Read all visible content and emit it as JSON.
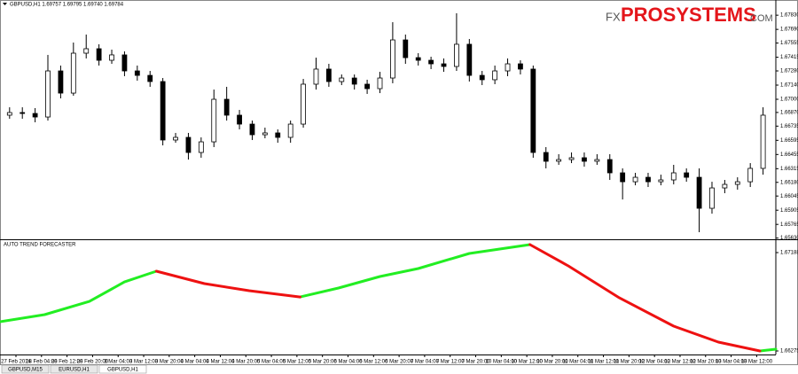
{
  "header": {
    "title": "GBPUSD,H1  1.69757 1.69795 1.69740 1.69784"
  },
  "logo": {
    "prefix": "FX",
    "brand": "PROSYSTEMS",
    "suffix": ".COM"
  },
  "tabs": [
    "GBPUSD,M15",
    "EURUSD,H1",
    "GBPUSD,H1"
  ],
  "chart_data": [
    {
      "type": "candlestick",
      "x": [
        2,
        6,
        10,
        14,
        18,
        22,
        26,
        30,
        34,
        38,
        42,
        46,
        50,
        54,
        58,
        62,
        66,
        70,
        74,
        78,
        82,
        86,
        90,
        94,
        98,
        102,
        106,
        110,
        114,
        118,
        122,
        126,
        130,
        134,
        138,
        142,
        146,
        150,
        154,
        158,
        162,
        166,
        170,
        174,
        178,
        182,
        186,
        190,
        194,
        198,
        202,
        206,
        210,
        214,
        218,
        222,
        226,
        230,
        234,
        238
      ],
      "open": [
        1.66843,
        1.66869,
        1.6686,
        1.66825,
        1.6728,
        1.67061,
        1.67455,
        1.67499,
        1.67385,
        1.67438,
        1.6728,
        1.67236,
        1.67175,
        1.66598,
        1.66624,
        1.66475,
        1.6658,
        1.67,
        1.66843,
        1.66755,
        1.6665,
        1.66668,
        1.66624,
        1.66755,
        1.67149,
        1.67298,
        1.67175,
        1.6721,
        1.67149,
        1.67105,
        1.6721,
        1.67586,
        1.67411,
        1.67385,
        1.6735,
        1.67324,
        1.67543,
        1.67236,
        1.67193,
        1.6728,
        1.6735,
        1.67298,
        1.66475,
        1.66388,
        1.66405,
        1.66423,
        1.66388,
        1.66405,
        1.66274,
        1.66186,
        1.6623,
        1.66186,
        1.66204,
        1.66274,
        1.6623,
        1.65924,
        1.66125,
        1.6616,
        1.66186,
        1.66318
      ],
      "high": [
        1.66921,
        1.66921,
        1.66913,
        1.67438,
        1.67333,
        1.6756,
        1.67639,
        1.67543,
        1.6749,
        1.67473,
        1.67333,
        1.6728,
        1.6721,
        1.66668,
        1.66668,
        1.66624,
        1.67096,
        1.67123,
        1.66895,
        1.6679,
        1.6672,
        1.66703,
        1.6679,
        1.67201,
        1.67411,
        1.6735,
        1.67245,
        1.67245,
        1.67193,
        1.67271,
        1.67761,
        1.67639,
        1.67455,
        1.6742,
        1.67403,
        1.67849,
        1.67595,
        1.6728,
        1.67333,
        1.67403,
        1.67385,
        1.67333,
        1.66528,
        1.66458,
        1.66475,
        1.66475,
        1.66458,
        1.66458,
        1.66318,
        1.66274,
        1.66274,
        1.66256,
        1.66353,
        1.66318,
        1.66318,
        1.66186,
        1.66204,
        1.6623,
        1.6637,
        1.66921
      ],
      "low": [
        1.66808,
        1.66808,
        1.66773,
        1.6679,
        1.67009,
        1.67035,
        1.67403,
        1.67333,
        1.6735,
        1.67228,
        1.67184,
        1.67123,
        1.66545,
        1.66571,
        1.66405,
        1.66423,
        1.66528,
        1.6679,
        1.66703,
        1.66598,
        1.66615,
        1.66571,
        1.66571,
        1.6672,
        1.67096,
        1.67123,
        1.6714,
        1.67096,
        1.67053,
        1.67061,
        1.67158,
        1.6735,
        1.67333,
        1.67298,
        1.67271,
        1.6728,
        1.67175,
        1.6714,
        1.67149,
        1.67228,
        1.67245,
        1.66423,
        1.66318,
        1.66353,
        1.6637,
        1.66335,
        1.66353,
        1.66204,
        1.66011,
        1.66151,
        1.66134,
        1.66151,
        1.6616,
        1.66186,
        1.65688,
        1.65871,
        1.66073,
        1.66108,
        1.66134,
        1.66256
      ],
      "close": [
        1.66869,
        1.6686,
        1.66825,
        1.6728,
        1.67061,
        1.67455,
        1.67499,
        1.67385,
        1.67438,
        1.6728,
        1.67236,
        1.67175,
        1.66598,
        1.66624,
        1.66475,
        1.6658,
        1.67,
        1.66843,
        1.66755,
        1.6665,
        1.66668,
        1.66624,
        1.66755,
        1.67149,
        1.67298,
        1.67175,
        1.6721,
        1.67149,
        1.67105,
        1.6721,
        1.67586,
        1.67411,
        1.67385,
        1.6735,
        1.67324,
        1.67543,
        1.67236,
        1.67193,
        1.6728,
        1.6735,
        1.67298,
        1.66475,
        1.66388,
        1.66405,
        1.66423,
        1.66388,
        1.66405,
        1.66274,
        1.66186,
        1.6623,
        1.66186,
        1.66204,
        1.66274,
        1.6623,
        1.65924,
        1.66125,
        1.6616,
        1.66186,
        1.66318,
        1.66843
      ],
      "up_color": "#ffffff",
      "down_color": "#000000",
      "xlim": [
        -1,
        242
      ],
      "xticks": [
        {
          "value": 4,
          "label": "27 Feb 2014"
        },
        {
          "value": 12,
          "label": "28 Feb 04:00"
        },
        {
          "value": 20,
          "label": "28 Feb 12:00"
        },
        {
          "value": 28,
          "label": "28 Feb 20:00"
        },
        {
          "value": 36,
          "label": "3 Mar 04:00"
        },
        {
          "value": 44,
          "label": "3 Mar 12:00"
        },
        {
          "value": 52,
          "label": "3 Mar 20:00"
        },
        {
          "value": 60,
          "label": "4 Mar 04:00"
        },
        {
          "value": 68,
          "label": "4 Mar 12:00"
        },
        {
          "value": 76,
          "label": "4 Mar 20:00"
        },
        {
          "value": 84,
          "label": "5 Mar 04:00"
        },
        {
          "value": 92,
          "label": "5 Mar 12:00"
        },
        {
          "value": 100,
          "label": "5 Mar 20:00"
        },
        {
          "value": 108,
          "label": "6 Mar 04:00"
        },
        {
          "value": 116,
          "label": "6 Mar 12:00"
        },
        {
          "value": 124,
          "label": "6 Mar 20:00"
        },
        {
          "value": 132,
          "label": "7 Mar 04:00"
        },
        {
          "value": 140,
          "label": "7 Mar 12:00"
        },
        {
          "value": 148,
          "label": "7 Mar 20:00"
        },
        {
          "value": 156,
          "label": "10 Mar 04:00"
        },
        {
          "value": 164,
          "label": "10 Mar 12:00"
        },
        {
          "value": 172,
          "label": "10 Mar 20:00"
        },
        {
          "value": 180,
          "label": "11 Mar 04:00"
        },
        {
          "value": 188,
          "label": "11 Mar 12:00"
        },
        {
          "value": 196,
          "label": "11 Mar 20:00"
        },
        {
          "value": 204,
          "label": "12 Mar 04:00"
        },
        {
          "value": 212,
          "label": "12 Mar 12:00"
        },
        {
          "value": 220,
          "label": "12 Mar 20:00"
        },
        {
          "value": 228,
          "label": "13 Mar 04:00"
        },
        {
          "value": 236,
          "label": "13 Mar 12:00"
        }
      ],
      "ylim": [
        1.65618,
        1.6798
      ],
      "yticks": [
        {
          "value": 1.6783,
          "label": "1.67830"
        },
        {
          "value": 1.6769,
          "label": "1.67690"
        },
        1.67555,
        1.67415,
        {
          "value": 1.6728,
          "label": "1.67280"
        },
        {
          "value": 1.6714,
          "label": "1.67140"
        },
        {
          "value": 1.67,
          "label": "1.67000"
        },
        {
          "value": 1.6687,
          "label": "1.66870"
        },
        1.66735,
        1.66595,
        1.66455,
        1.66315,
        {
          "value": 1.6618,
          "label": "1.66180"
        },
        1.66045,
        1.65905,
        1.65765,
        {
          "value": 1.6563,
          "label": "1.65630"
        }
      ]
    },
    {
      "type": "line",
      "title": "AUTO TREND FORECASTER",
      "x": [
        -1,
        13,
        27,
        38,
        48,
        63,
        77,
        93,
        105,
        118,
        130,
        146,
        165,
        177,
        193,
        210,
        224,
        237,
        242
      ],
      "series": [
        {
          "color": "#22ee22",
          "values": [
            1.66546,
            1.66612,
            1.66735,
            1.66916,
            1.67015,
            null,
            null,
            1.66776,
            1.66859,
            1.66966,
            1.6704,
            1.6718,
            1.67262,
            null,
            null,
            null,
            null,
            1.66275,
            1.66291
          ]
        },
        {
          "color": "#ee1111",
          "values": [
            null,
            null,
            null,
            null,
            1.67015,
            1.669,
            1.66834,
            1.66776,
            null,
            null,
            null,
            null,
            1.67262,
            1.67065,
            1.66768,
            1.66505,
            1.66357,
            1.66275,
            null
          ]
        }
      ],
      "xlim": [
        -1,
        242
      ],
      "ylim": [
        1.66242,
        1.67295
      ],
      "yticks": [
        1.67188,
        1.66275
      ]
    }
  ]
}
